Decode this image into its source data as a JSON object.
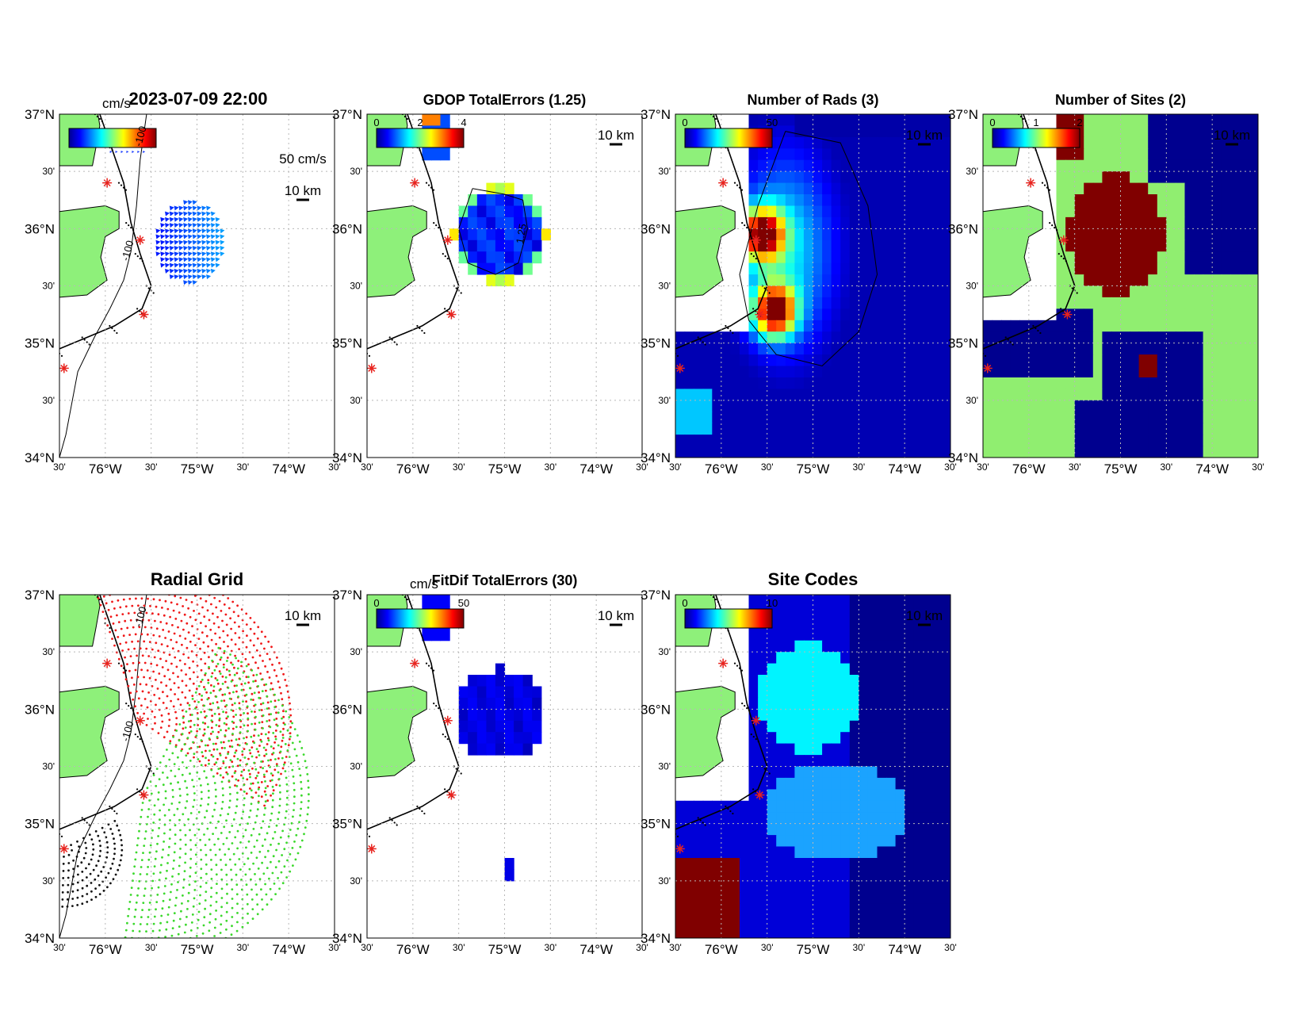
{
  "figure_title": "2023-07-09 22:00",
  "colors": {
    "land": "#8ef07a",
    "ocean_background": "#ffffff",
    "grid": "#b8b8b8",
    "site_marker": "#e8241f",
    "dark_navy": "#00008f",
    "dark_red": "#800000"
  },
  "axis_labels": {
    "lat": [
      "37°N",
      "30'",
      "36°N",
      "30'",
      "35°N",
      "30'",
      "34°N"
    ],
    "lon": [
      "30'",
      "76°W",
      "30'",
      "75°W",
      "30'",
      "74°W",
      "30'"
    ]
  },
  "scale_bar_label": "10 km",
  "panels": [
    {
      "id": "currents",
      "title": "",
      "colorbar_unit": "cm/s",
      "colorbar_ticks": [],
      "overlay_texts": [
        "50 cm/s"
      ],
      "contour_labels": [
        "-100",
        "-100"
      ],
      "has_vectors": true
    },
    {
      "id": "gdop",
      "title": "GDOP TotalErrors (1.25)",
      "colorbar_unit": "",
      "colorbar_ticks": [
        "0",
        "2",
        "4"
      ],
      "contour_labels": [
        "1.25"
      ]
    },
    {
      "id": "nrads",
      "title": "Number of Rads (3)",
      "colorbar_unit": "",
      "colorbar_ticks": [
        "0",
        "50"
      ]
    },
    {
      "id": "nsites",
      "title": "Number of Sites (2)",
      "colorbar_unit": "",
      "colorbar_ticks": [
        "0",
        "1",
        "2"
      ]
    },
    {
      "id": "radgrid",
      "title": "Radial Grid",
      "colorbar_unit": "",
      "colorbar_ticks": [],
      "contour_labels": [
        "-100",
        "-100"
      ]
    },
    {
      "id": "fitdif",
      "title": "FitDif TotalErrors (30)",
      "colorbar_unit": "cm/s",
      "colorbar_ticks": [
        "0",
        "50"
      ]
    },
    {
      "id": "sitecodes",
      "title": "Site Codes",
      "colorbar_unit": "",
      "colorbar_ticks": [
        "0",
        "10"
      ]
    }
  ]
}
